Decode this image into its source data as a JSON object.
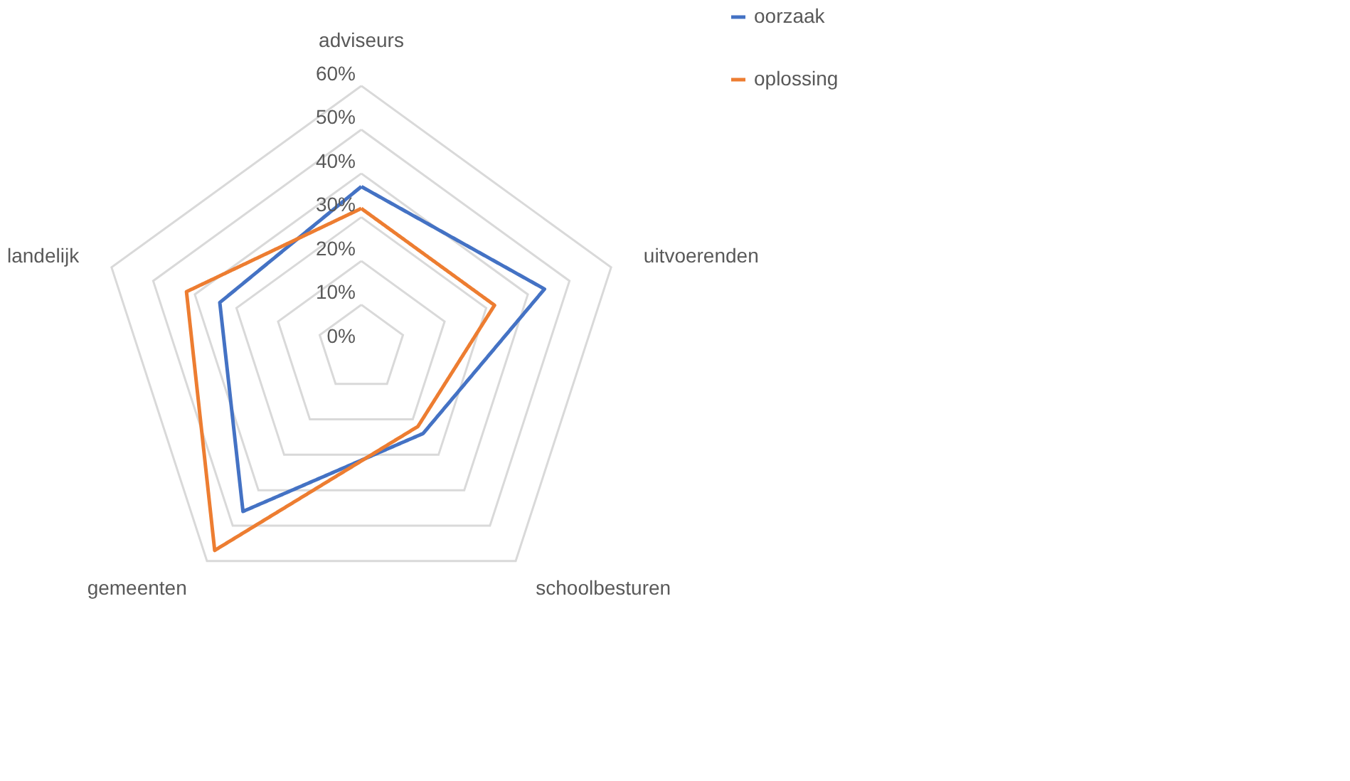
{
  "chart_data": {
    "type": "radar",
    "categories": [
      "adviseurs",
      "uitvoerenden",
      "schoolbesturen",
      "gemeenten",
      "landelijk"
    ],
    "series": [
      {
        "name": "oorzaak",
        "color": "#4472c4",
        "values": [
          37,
          44,
          24,
          46,
          34
        ]
      },
      {
        "name": "oplossing",
        "color": "#ed7d31",
        "values": [
          32,
          32,
          22,
          57,
          42
        ]
      }
    ],
    "ylim": [
      0,
      60
    ],
    "yticks": [
      {
        "value": 0,
        "label": "0%"
      },
      {
        "value": 10,
        "label": "10%"
      },
      {
        "value": 20,
        "label": "20%"
      },
      {
        "value": 30,
        "label": "30%"
      },
      {
        "value": 40,
        "label": "40%"
      },
      {
        "value": 50,
        "label": "50%"
      },
      {
        "value": 60,
        "label": "60%"
      }
    ],
    "grid": true,
    "legend": "right",
    "marker": "none",
    "line_style": "solid"
  }
}
